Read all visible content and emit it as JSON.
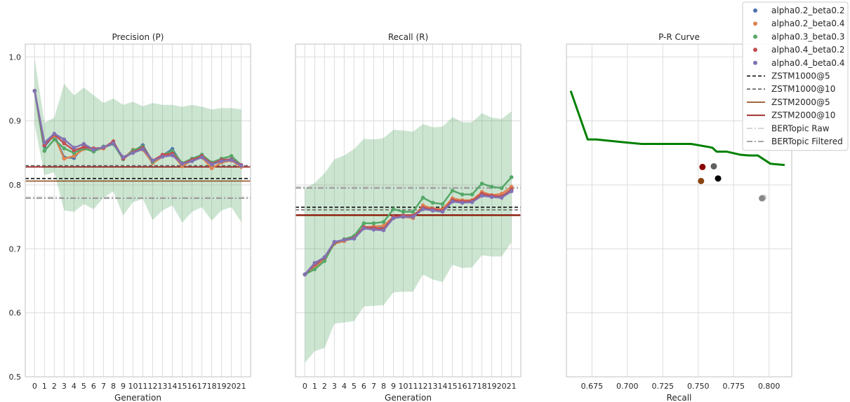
{
  "chart_data": [
    {
      "type": "line",
      "title": "Precision (P)",
      "xlabel": "Generation",
      "ylabel": "",
      "x": [
        0,
        1,
        2,
        3,
        4,
        5,
        6,
        7,
        8,
        9,
        10,
        11,
        12,
        13,
        14,
        15,
        16,
        17,
        18,
        19,
        20,
        21
      ],
      "x_tick_labels": [
        "0",
        "1",
        "2",
        "3",
        "4",
        "5",
        "6",
        "7",
        "8",
        "9",
        "10",
        "11",
        "12",
        "13",
        "14",
        "15",
        "16",
        "17",
        "18",
        "19",
        "20",
        "21"
      ],
      "ylim": [
        0.5,
        1.02
      ],
      "y_ticks": [
        0.5,
        0.6,
        0.7,
        0.8,
        0.9,
        1.0
      ],
      "y_tick_labels": [
        "0.5",
        "0.6",
        "0.7",
        "0.8",
        "0.9",
        "1.0"
      ],
      "series": [
        {
          "name": "alpha0.2_beta0.2",
          "color": "#4c72b0",
          "values": [
            0.947,
            0.86,
            0.878,
            0.843,
            0.842,
            0.86,
            0.855,
            0.858,
            0.864,
            0.843,
            0.852,
            0.862,
            0.836,
            0.846,
            0.856,
            0.832,
            0.84,
            0.847,
            0.832,
            0.838,
            0.84,
            0.83
          ]
        },
        {
          "name": "alpha0.2_beta0.4",
          "color": "#dd8452",
          "values": [
            0.947,
            0.864,
            0.876,
            0.841,
            0.845,
            0.856,
            0.854,
            0.857,
            0.866,
            0.841,
            0.855,
            0.855,
            0.834,
            0.844,
            0.848,
            0.829,
            0.838,
            0.843,
            0.826,
            0.835,
            0.838,
            0.828
          ]
        },
        {
          "name": "alpha0.3_beta0.3",
          "color": "#55a868",
          "values": [
            0.947,
            0.853,
            0.871,
            0.857,
            0.85,
            0.857,
            0.852,
            0.86,
            0.864,
            0.84,
            0.854,
            0.86,
            0.836,
            0.847,
            0.853,
            0.834,
            0.841,
            0.847,
            0.835,
            0.841,
            0.845,
            0.831
          ]
        },
        {
          "name": "alpha0.4_beta0.2",
          "color": "#c44e52",
          "values": [
            0.947,
            0.862,
            0.879,
            0.865,
            0.854,
            0.859,
            0.857,
            0.858,
            0.868,
            0.841,
            0.851,
            0.858,
            0.838,
            0.847,
            0.849,
            0.833,
            0.839,
            0.845,
            0.833,
            0.839,
            0.84,
            0.831
          ]
        },
        {
          "name": "alpha0.4_beta0.4",
          "color": "#8172b3",
          "values": [
            0.947,
            0.866,
            0.88,
            0.871,
            0.858,
            0.864,
            0.855,
            0.859,
            0.865,
            0.843,
            0.85,
            0.856,
            0.838,
            0.844,
            0.846,
            0.833,
            0.837,
            0.843,
            0.832,
            0.837,
            0.839,
            0.83
          ]
        }
      ],
      "band": {
        "color": "#55a868",
        "lower": [
          0.895,
          0.815,
          0.82,
          0.76,
          0.758,
          0.77,
          0.762,
          0.78,
          0.79,
          0.752,
          0.773,
          0.778,
          0.745,
          0.76,
          0.768,
          0.741,
          0.758,
          0.765,
          0.744,
          0.76,
          0.765,
          0.742
        ],
        "upper": [
          0.998,
          0.897,
          0.905,
          0.958,
          0.94,
          0.952,
          0.94,
          0.928,
          0.935,
          0.925,
          0.93,
          0.923,
          0.928,
          0.925,
          0.925,
          0.922,
          0.925,
          0.922,
          0.918,
          0.92,
          0.92,
          0.918
        ]
      },
      "hlines": [
        {
          "name": "ZSTM1000@5",
          "value": 0.81,
          "color": "#000000",
          "dash": "5,3"
        },
        {
          "name": "ZSTM1000@10",
          "value": 0.83,
          "color": "#606060",
          "dash": "5,3"
        },
        {
          "name": "ZSTM2000@5",
          "value": 0.806,
          "color": "#8b4513",
          "dash": ""
        },
        {
          "name": "ZSTM2000@10",
          "value": 0.828,
          "color": "#8b0000",
          "dash": ""
        },
        {
          "name": "BERTopic Raw",
          "value": 0.781,
          "color": "#cccccc",
          "dash": "8,3,2,3"
        },
        {
          "name": "BERTopic Filtered",
          "value": 0.779,
          "color": "#888888",
          "dash": "8,3,2,3"
        }
      ]
    },
    {
      "type": "line",
      "title": "Recall (R)",
      "xlabel": "Generation",
      "ylabel": "",
      "x": [
        0,
        1,
        2,
        3,
        4,
        5,
        6,
        7,
        8,
        9,
        10,
        11,
        12,
        13,
        14,
        15,
        16,
        17,
        18,
        19,
        20,
        21
      ],
      "x_tick_labels": [
        "0",
        "1",
        "2",
        "3",
        "4",
        "5",
        "6",
        "7",
        "8",
        "9",
        "10",
        "11",
        "12",
        "13",
        "14",
        "15",
        "16",
        "17",
        "18",
        "19",
        "20",
        "21"
      ],
      "ylim": [
        0.5,
        1.02
      ],
      "series": [
        {
          "name": "alpha0.2_beta0.2",
          "color": "#4c72b0",
          "values": [
            0.66,
            0.672,
            0.685,
            0.709,
            0.713,
            0.716,
            0.733,
            0.732,
            0.733,
            0.75,
            0.752,
            0.75,
            0.766,
            0.76,
            0.76,
            0.776,
            0.774,
            0.774,
            0.785,
            0.782,
            0.782,
            0.791
          ]
        },
        {
          "name": "alpha0.2_beta0.4",
          "color": "#dd8452",
          "values": [
            0.66,
            0.67,
            0.684,
            0.708,
            0.712,
            0.718,
            0.734,
            0.735,
            0.736,
            0.75,
            0.75,
            0.748,
            0.768,
            0.763,
            0.762,
            0.779,
            0.776,
            0.776,
            0.789,
            0.784,
            0.786,
            0.797
          ]
        },
        {
          "name": "alpha0.3_beta0.3",
          "color": "#55a868",
          "values": [
            0.66,
            0.668,
            0.681,
            0.709,
            0.715,
            0.72,
            0.74,
            0.74,
            0.742,
            0.762,
            0.758,
            0.758,
            0.78,
            0.772,
            0.77,
            0.791,
            0.785,
            0.785,
            0.802,
            0.797,
            0.795,
            0.812
          ]
        },
        {
          "name": "alpha0.4_beta0.2",
          "color": "#c44e52",
          "values": [
            0.66,
            0.676,
            0.686,
            0.71,
            0.714,
            0.717,
            0.734,
            0.733,
            0.731,
            0.75,
            0.752,
            0.752,
            0.764,
            0.762,
            0.76,
            0.776,
            0.774,
            0.775,
            0.786,
            0.783,
            0.782,
            0.793
          ]
        },
        {
          "name": "alpha0.4_beta0.4",
          "color": "#8172b3",
          "values": [
            0.66,
            0.678,
            0.687,
            0.711,
            0.714,
            0.716,
            0.732,
            0.73,
            0.729,
            0.748,
            0.75,
            0.75,
            0.762,
            0.76,
            0.758,
            0.774,
            0.772,
            0.773,
            0.783,
            0.781,
            0.78,
            0.79
          ]
        }
      ],
      "band": {
        "color": "#55a868",
        "lower": [
          0.522,
          0.54,
          0.545,
          0.583,
          0.585,
          0.587,
          0.61,
          0.611,
          0.612,
          0.632,
          0.633,
          0.633,
          0.66,
          0.652,
          0.648,
          0.675,
          0.67,
          0.671,
          0.69,
          0.688,
          0.688,
          0.71
        ]
      },
      "band_upper": [
        0.795,
        0.803,
        0.818,
        0.84,
        0.846,
        0.856,
        0.872,
        0.871,
        0.873,
        0.886,
        0.885,
        0.883,
        0.895,
        0.89,
        0.891,
        0.906,
        0.898,
        0.898,
        0.912,
        0.905,
        0.903,
        0.915
      ],
      "hlines": [
        {
          "name": "ZSTM1000@5",
          "value": 0.765,
          "color": "#000000",
          "dash": "5,3"
        },
        {
          "name": "ZSTM1000@10",
          "value": 0.761,
          "color": "#606060",
          "dash": "5,3"
        },
        {
          "name": "ZSTM2000@5",
          "value": 0.752,
          "color": "#8b4513",
          "dash": ""
        },
        {
          "name": "ZSTM2000@10",
          "value": 0.753,
          "color": "#8b0000",
          "dash": ""
        },
        {
          "name": "BERTopic Raw",
          "value": 0.797,
          "color": "#cccccc",
          "dash": "8,3,2,3"
        },
        {
          "name": "BERTopic Filtered",
          "value": 0.795,
          "color": "#888888",
          "dash": "8,3,2,3"
        }
      ]
    },
    {
      "type": "line",
      "title": "P-R Curve",
      "xlabel": "Recall",
      "ylabel": "",
      "xlim": [
        0.657,
        0.816
      ],
      "ylim": [
        0.5,
        1.02
      ],
      "x_ticks": [
        0.675,
        0.7,
        0.725,
        0.75,
        0.775,
        0.8
      ],
      "x_tick_labels": [
        "0.675",
        "0.700",
        "0.725",
        "0.750",
        "0.775",
        "0.800"
      ],
      "curve": {
        "color": "#008000",
        "x": [
          0.66,
          0.672,
          0.678,
          0.7,
          0.71,
          0.725,
          0.745,
          0.758,
          0.76,
          0.763,
          0.77,
          0.78,
          0.786,
          0.792,
          0.801,
          0.811
        ],
        "y": [
          0.947,
          0.871,
          0.871,
          0.866,
          0.864,
          0.864,
          0.864,
          0.859,
          0.858,
          0.852,
          0.852,
          0.847,
          0.846,
          0.846,
          0.833,
          0.831
        ]
      },
      "points": [
        {
          "name": "ZSTM1000@5",
          "x": 0.764,
          "y": 0.81,
          "color": "#000000"
        },
        {
          "name": "ZSTM1000@10",
          "x": 0.761,
          "y": 0.829,
          "color": "#606060"
        },
        {
          "name": "ZSTM2000@5",
          "x": 0.752,
          "y": 0.806,
          "color": "#8b4513"
        },
        {
          "name": "ZSTM2000@10",
          "x": 0.753,
          "y": 0.828,
          "color": "#8b0000"
        },
        {
          "name": "BERTopic Raw",
          "x": 0.796,
          "y": 0.78,
          "color": "#cccccc"
        },
        {
          "name": "BERTopic Filtered",
          "x": 0.795,
          "y": 0.779,
          "color": "#888888"
        }
      ]
    }
  ],
  "legend": {
    "placement": "top-right",
    "entries": [
      {
        "label": "alpha0.2_beta0.2",
        "kind": "dot",
        "color": "#4c72b0"
      },
      {
        "label": "alpha0.2_beta0.4",
        "kind": "dot",
        "color": "#dd8452"
      },
      {
        "label": "alpha0.3_beta0.3",
        "kind": "dot",
        "color": "#55a868"
      },
      {
        "label": "alpha0.4_beta0.2",
        "kind": "dot",
        "color": "#c44e52"
      },
      {
        "label": "alpha0.4_beta0.4",
        "kind": "dot",
        "color": "#8172b3"
      },
      {
        "label": "ZSTM1000@5",
        "kind": "line",
        "color": "#000000",
        "dash": "5,3"
      },
      {
        "label": "ZSTM1000@10",
        "kind": "line",
        "color": "#606060",
        "dash": "5,3"
      },
      {
        "label": "ZSTM2000@5",
        "kind": "line",
        "color": "#8b4513",
        "dash": ""
      },
      {
        "label": "ZSTM2000@10",
        "kind": "line",
        "color": "#8b0000",
        "dash": ""
      },
      {
        "label": "BERTopic Raw",
        "kind": "line",
        "color": "#cccccc",
        "dash": "8,3,2,3"
      },
      {
        "label": "BERTopic Filtered",
        "kind": "line",
        "color": "#888888",
        "dash": "8,3,2,3"
      }
    ]
  }
}
